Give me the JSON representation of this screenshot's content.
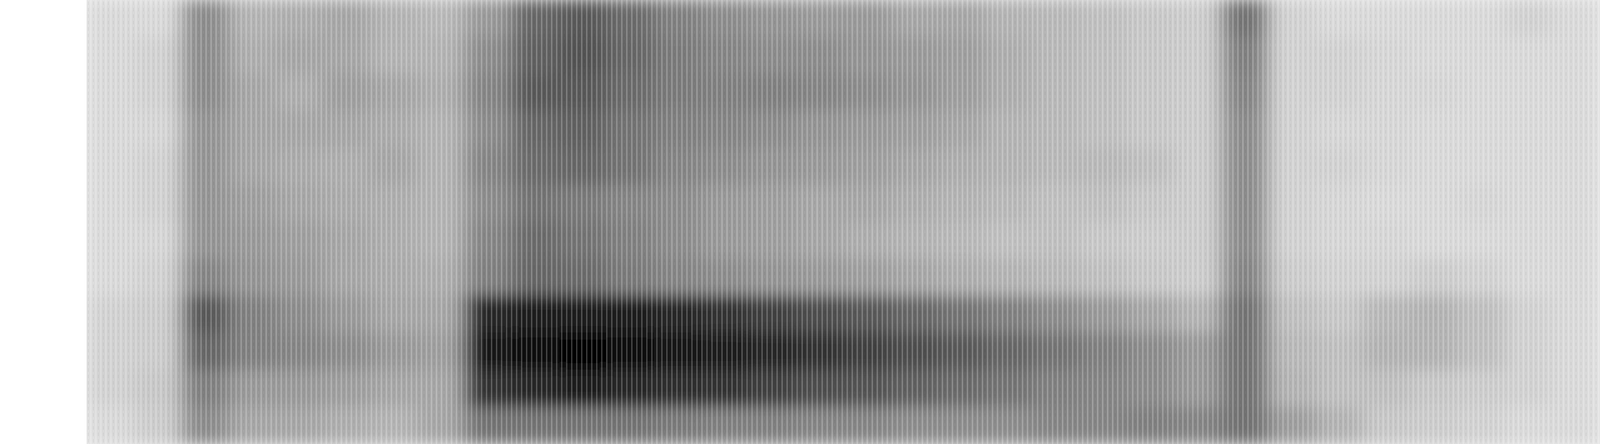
{
  "chart_data": {
    "type": "heatmap",
    "tick_labels": false,
    "color": "#000000",
    "color_range": [
      0,
      100
    ],
    "cells": [
      [
        15,
        15,
        45,
        30,
        32,
        35,
        30,
        28,
        40,
        60,
        65,
        58,
        50,
        45,
        42,
        40,
        40,
        35,
        35,
        30,
        28,
        25,
        22,
        20,
        55,
        18,
        15,
        15,
        15,
        15,
        18,
        15
      ],
      [
        15,
        18,
        45,
        32,
        35,
        35,
        30,
        30,
        45,
        62,
        68,
        60,
        52,
        48,
        45,
        45,
        42,
        40,
        38,
        32,
        28,
        25,
        22,
        20,
        50,
        18,
        18,
        16,
        15,
        15,
        15,
        15
      ],
      [
        15,
        18,
        45,
        35,
        32,
        38,
        35,
        32,
        48,
        65,
        65,
        58,
        52,
        50,
        50,
        48,
        45,
        42,
        38,
        32,
        28,
        25,
        22,
        20,
        48,
        18,
        18,
        16,
        16,
        15,
        15,
        15
      ],
      [
        15,
        16,
        42,
        35,
        35,
        35,
        33,
        30,
        45,
        60,
        62,
        55,
        50,
        48,
        45,
        42,
        40,
        38,
        35,
        30,
        28,
        25,
        22,
        20,
        45,
        18,
        16,
        16,
        15,
        15,
        15,
        15
      ],
      [
        15,
        18,
        42,
        35,
        33,
        32,
        35,
        30,
        48,
        58,
        60,
        55,
        48,
        45,
        42,
        40,
        38,
        35,
        32,
        30,
        28,
        28,
        25,
        20,
        45,
        18,
        18,
        16,
        15,
        15,
        15,
        15
      ],
      [
        15,
        18,
        42,
        38,
        35,
        33,
        32,
        30,
        45,
        55,
        52,
        48,
        45,
        40,
        38,
        35,
        35,
        32,
        30,
        28,
        25,
        25,
        22,
        20,
        45,
        18,
        16,
        15,
        15,
        16,
        15,
        15
      ],
      [
        15,
        16,
        42,
        40,
        38,
        35,
        32,
        30,
        48,
        58,
        55,
        50,
        45,
        40,
        38,
        35,
        32,
        30,
        28,
        25,
        25,
        22,
        20,
        20,
        45,
        18,
        16,
        16,
        15,
        15,
        15,
        15
      ],
      [
        15,
        18,
        48,
        42,
        40,
        35,
        33,
        32,
        50,
        60,
        58,
        52,
        48,
        45,
        42,
        40,
        38,
        35,
        32,
        30,
        28,
        25,
        22,
        20,
        48,
        20,
        18,
        18,
        20,
        18,
        15,
        15
      ],
      [
        18,
        20,
        65,
        50,
        45,
        40,
        35,
        35,
        85,
        88,
        90,
        88,
        85,
        80,
        75,
        70,
        65,
        60,
        55,
        50,
        45,
        40,
        35,
        30,
        55,
        25,
        22,
        28,
        30,
        25,
        18,
        15
      ],
      [
        18,
        20,
        60,
        50,
        48,
        45,
        40,
        38,
        92,
        95,
        98,
        95,
        92,
        88,
        85,
        80,
        75,
        70,
        65,
        60,
        55,
        50,
        45,
        40,
        55,
        28,
        25,
        30,
        30,
        25,
        18,
        15
      ],
      [
        18,
        22,
        50,
        40,
        40,
        38,
        35,
        35,
        80,
        85,
        88,
        85,
        82,
        80,
        75,
        70,
        68,
        62,
        58,
        55,
        50,
        48,
        45,
        40,
        55,
        30,
        25,
        25,
        22,
        20,
        18,
        15
      ],
      [
        15,
        20,
        45,
        35,
        35,
        32,
        30,
        35,
        55,
        55,
        55,
        55,
        52,
        50,
        50,
        48,
        48,
        45,
        45,
        45,
        48,
        48,
        50,
        48,
        55,
        38,
        30,
        22,
        20,
        18,
        15,
        15
      ]
    ]
  }
}
